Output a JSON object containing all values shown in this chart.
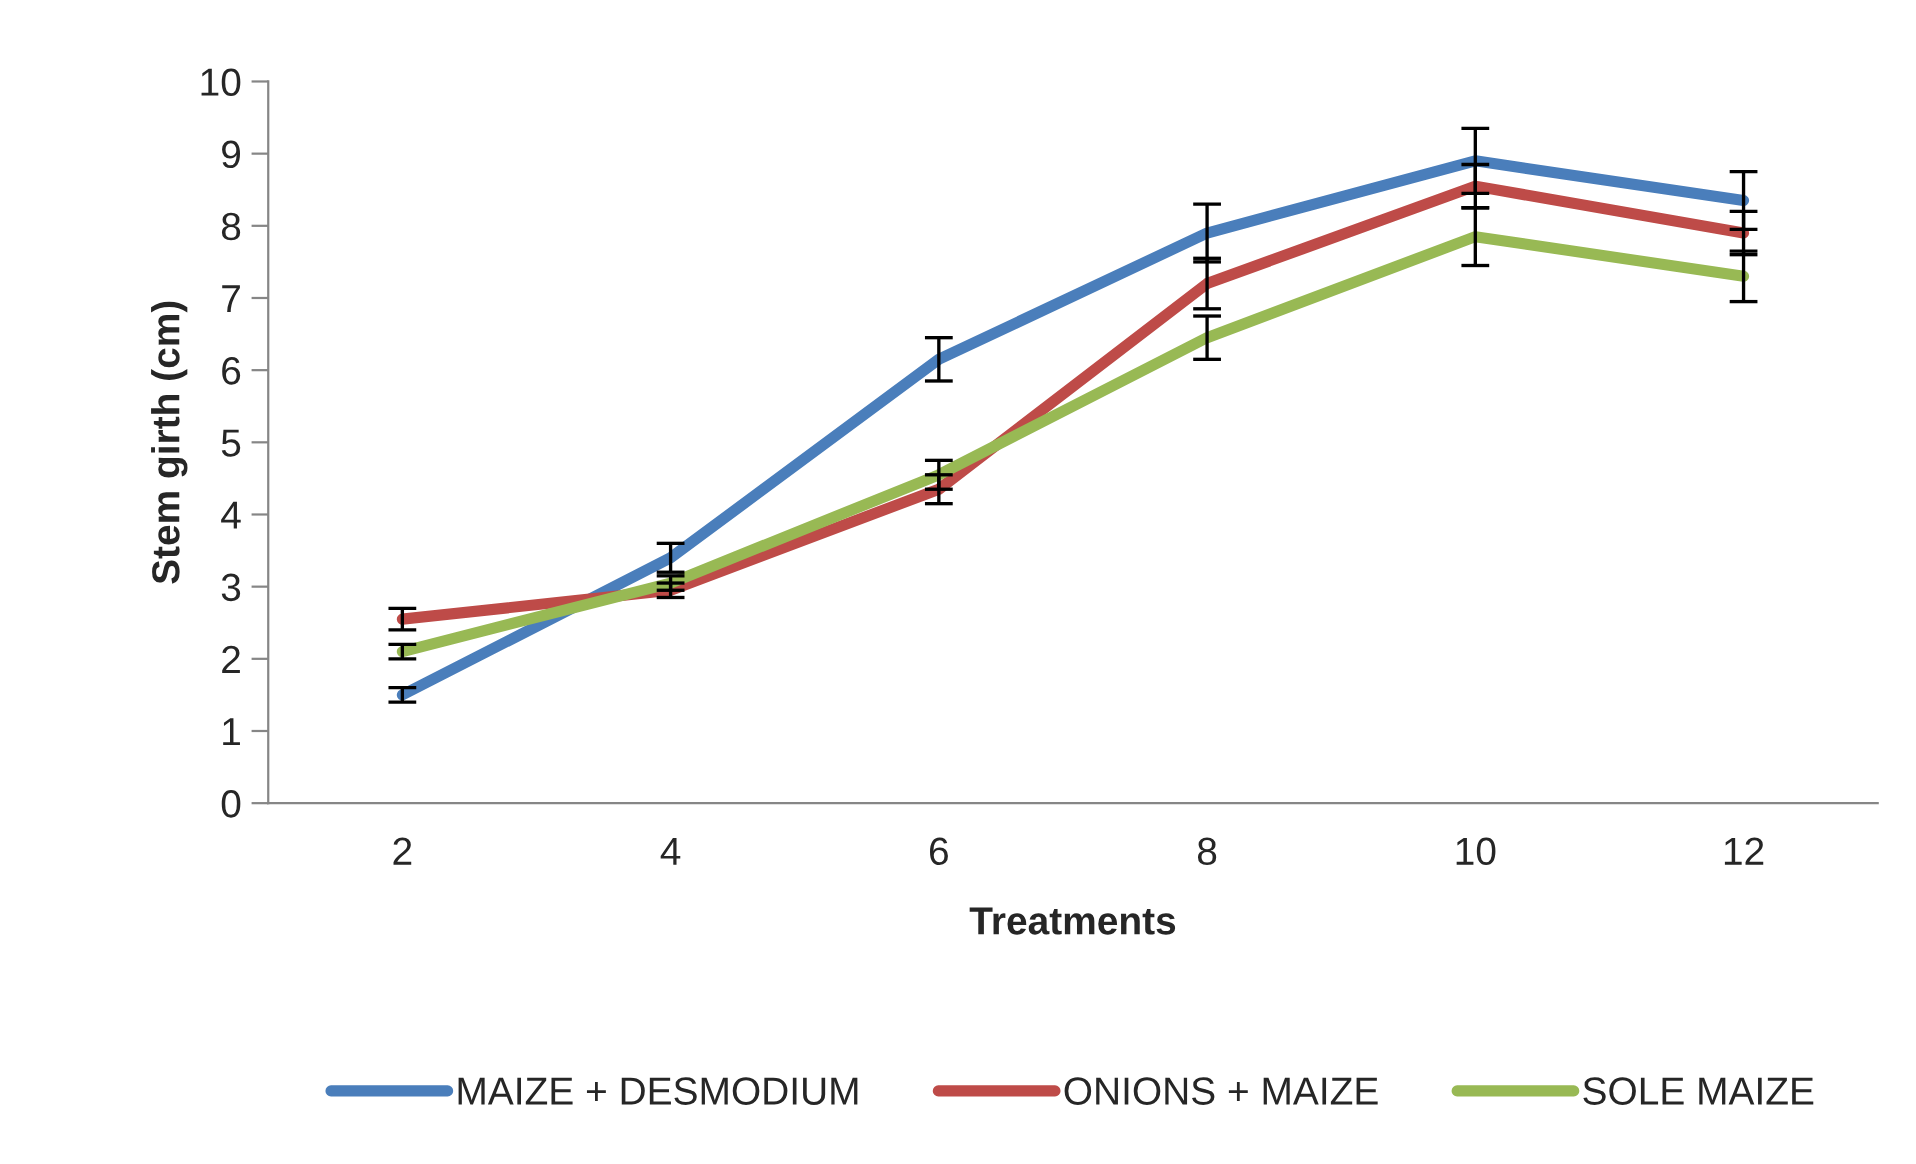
{
  "chart_data": {
    "type": "line",
    "xlabel": "Treatments",
    "ylabel": "Stem girth (cm)",
    "categories": [
      "2",
      "4",
      "6",
      "8",
      "10",
      "12"
    ],
    "ylim": [
      0,
      10
    ],
    "yticks": [
      0,
      1,
      2,
      3,
      4,
      5,
      6,
      7,
      8,
      9,
      10
    ],
    "grid": false,
    "legend": "bottom",
    "marker": "none",
    "line_style": "solid",
    "series": [
      {
        "name": "MAIZE + DESMODIUM",
        "color": "#4a7ebb",
        "values": [
          1.5,
          3.4,
          6.15,
          7.9,
          8.9,
          8.35
        ],
        "errors": [
          0.1,
          0.2,
          0.3,
          0.4,
          0.45,
          0.4
        ]
      },
      {
        "name": "ONIONS + MAIZE",
        "color": "#be4b48",
        "values": [
          2.55,
          2.95,
          4.35,
          7.2,
          8.55,
          7.9
        ],
        "errors": [
          0.15,
          0.1,
          0.2,
          0.35,
          0.3,
          0.3
        ]
      },
      {
        "name": "SOLE MAIZE",
        "color": "#98b954",
        "values": [
          2.1,
          3.05,
          4.55,
          6.45,
          7.85,
          7.3
        ],
        "errors": [
          0.1,
          0.1,
          0.2,
          0.3,
          0.4,
          0.35
        ]
      }
    ]
  }
}
